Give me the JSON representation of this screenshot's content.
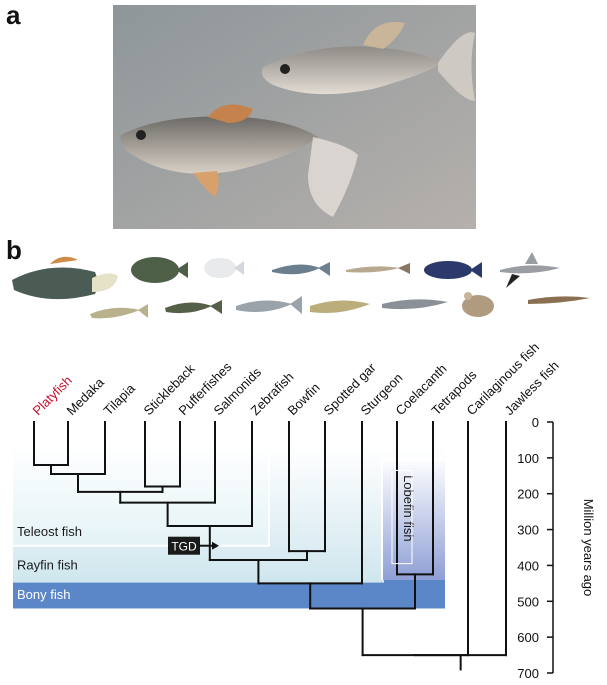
{
  "panels": {
    "a": "a",
    "b": "b"
  },
  "species_labels": [
    {
      "key": "platyfish",
      "text": "Platyfish",
      "highlight": true
    },
    {
      "key": "medaka",
      "text": "Medaka"
    },
    {
      "key": "tilapia",
      "text": "Tilapia"
    },
    {
      "key": "stickleback",
      "text": "Stickleback"
    },
    {
      "key": "pufferfishes",
      "text": "Pufferfishes"
    },
    {
      "key": "salmonids",
      "text": "Salmonids"
    },
    {
      "key": "zebrafish",
      "text": "Zebrafish"
    },
    {
      "key": "bowfin",
      "text": "Bowfin"
    },
    {
      "key": "spotted-gar",
      "text": "Spotted gar"
    },
    {
      "key": "sturgeon",
      "text": "Sturgeon"
    },
    {
      "key": "coelacanth",
      "text": "Coelacanth"
    },
    {
      "key": "tetrapods",
      "text": "Tetrapods"
    },
    {
      "key": "cartilaginous",
      "text": "Carilaginous fish"
    },
    {
      "key": "jawless",
      "text": "Jawless fish"
    }
  ],
  "group_labels": {
    "teleost": "Teleost fish",
    "rayfin": "Rayfin fish",
    "bony": "Bony fish",
    "lobefin": "Lobefin fish"
  },
  "tgd_label": "TGD",
  "axis": {
    "title": "Million years ago",
    "ticks": [
      0,
      100,
      200,
      300,
      400,
      500,
      600,
      700
    ]
  },
  "colors": {
    "platyfish_label": "#c8102e",
    "bony": "#5b86c8",
    "rayfin_top": "#cfe6ee",
    "teleost_top": "#e4f3f6",
    "lobefin": "#8f9fd6",
    "branch": "#111111"
  }
}
